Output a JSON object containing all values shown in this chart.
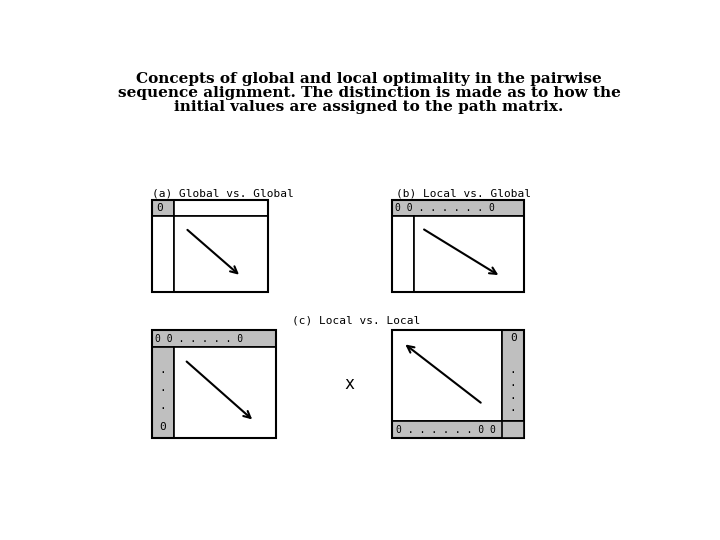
{
  "title_line1": "Concepts of global and local optimality in the pairwise",
  "title_line2": "sequence alignment. The distinction is made as to how the",
  "title_line3": "initial values are assigned to the path matrix.",
  "title_fontsize": 11,
  "bg_color": "#ffffff",
  "gray_color": "#bfbfbf",
  "black": "#000000",
  "white": "#ffffff",
  "label_a": "(a) Global vs. Global",
  "label_b": "(b) Local vs. Global",
  "label_c": "(c) Local vs. Local",
  "x_label": "x",
  "top_row_text_b": "0 0 . . . . . . 0",
  "top_row_text_c": "0 0 . . . . . 0",
  "bot_row_text_c": "0 . . . . . . 0 0"
}
